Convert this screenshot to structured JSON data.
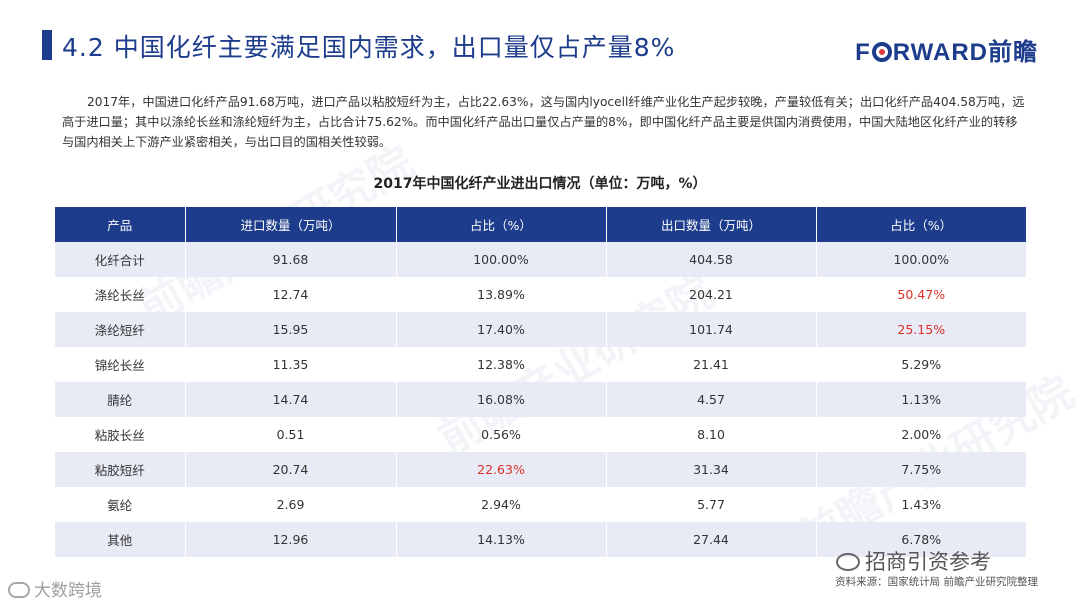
{
  "header": {
    "title": "4.2  中国化纤主要满足国内需求，出口量仅占产量8%",
    "logo": {
      "pre": "F",
      "post": "RWARD",
      "cn": "前瞻"
    }
  },
  "paragraph": "2017年，中国进口化纤产品91.68万吨，进口产品以粘胶短纤为主，占比22.63%，这与国内lyocell纤维产业化生产起步较晚，产量较低有关；出口化纤产品404.58万吨，远高于进口量；其中以涤纶长丝和涤纶短纤为主，占比合计75.62%。而中国化纤产品出口量仅占产量的8%，即中国化纤产品主要是供国内消费使用，中国大陆地区化纤产业的转移与国内相关上下游产业紧密相关，与出口目的国相关性较弱。",
  "table": {
    "caption": "2017年中国化纤产业进出口情况（单位：万吨，%）",
    "headers": [
      "产品",
      "进口数量（万吨）",
      "占比（%）",
      "出口数量（万吨）",
      "占比（%）"
    ],
    "rows": [
      [
        "化纤合计",
        "91.68",
        "100.00%",
        "404.58",
        "100.00%"
      ],
      [
        "涤纶长丝",
        "12.74",
        "13.89%",
        "204.21",
        "50.47%"
      ],
      [
        "涤纶短纤",
        "15.95",
        "17.40%",
        "101.74",
        "25.15%"
      ],
      [
        "锦纶长丝",
        "11.35",
        "12.38%",
        "21.41",
        "5.29%"
      ],
      [
        "腈纶",
        "14.74",
        "16.08%",
        "4.57",
        "1.13%"
      ],
      [
        "粘胶长丝",
        "0.51",
        "0.56%",
        "8.10",
        "2.00%"
      ],
      [
        "粘胶短纤",
        "20.74",
        "22.63%",
        "31.34",
        "7.75%"
      ],
      [
        "氨纶",
        "2.69",
        "2.94%",
        "5.77",
        "1.43%"
      ],
      [
        "其他",
        "12.96",
        "14.13%",
        "27.44",
        "6.78%"
      ]
    ],
    "highlight_color": "#d9302a"
  },
  "footer": {
    "source": "资料来源：国家统计局  前瞻产业研究院整理",
    "wechat_label": "招商引资参考",
    "corner_logo": "大数跨境"
  },
  "watermark": "前瞻产业研究院",
  "colors": {
    "primary": "#1d3c8c",
    "stripe": "#e8ebf5"
  }
}
